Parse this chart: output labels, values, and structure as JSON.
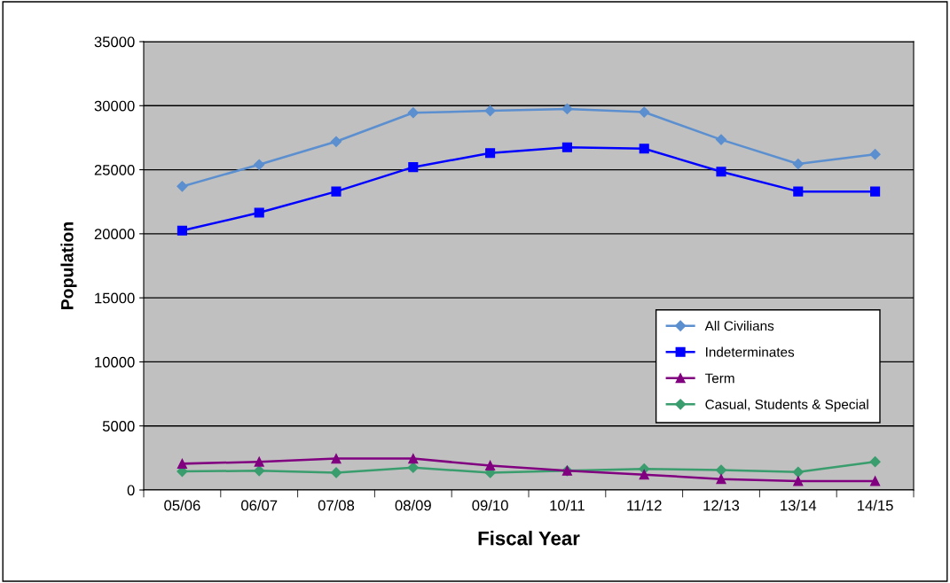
{
  "chart_data": {
    "type": "line",
    "xlabel": "Fiscal Year",
    "ylabel": "Population",
    "categories": [
      "05/06",
      "06/07",
      "07/08",
      "08/09",
      "09/10",
      "10/11",
      "11/12",
      "12/13",
      "13/14",
      "14/15"
    ],
    "series": [
      {
        "name": "All Civilians",
        "color": "#5b8fcf",
        "marker": "diamond",
        "values": [
          23700,
          25400,
          27200,
          29450,
          29600,
          29750,
          29500,
          27350,
          25450,
          26200
        ]
      },
      {
        "name": "Indeterminates",
        "color": "#0000ff",
        "marker": "square",
        "values": [
          20250,
          21650,
          23300,
          25200,
          26300,
          26750,
          26650,
          24850,
          23300,
          23300
        ]
      },
      {
        "name": "Term",
        "color": "#800080",
        "marker": "triangle",
        "values": [
          2050,
          2200,
          2450,
          2450,
          1900,
          1500,
          1200,
          850,
          700,
          700
        ]
      },
      {
        "name": "Casual, Students & Special",
        "color": "#3a9d6e",
        "marker": "diamond",
        "values": [
          1450,
          1500,
          1350,
          1750,
          1350,
          1500,
          1650,
          1550,
          1400,
          2200
        ]
      }
    ],
    "ylim": [
      0,
      35000
    ],
    "yticks": [
      0,
      5000,
      10000,
      15000,
      20000,
      25000,
      30000,
      35000
    ],
    "grid": "y",
    "legend": "bottom right"
  }
}
